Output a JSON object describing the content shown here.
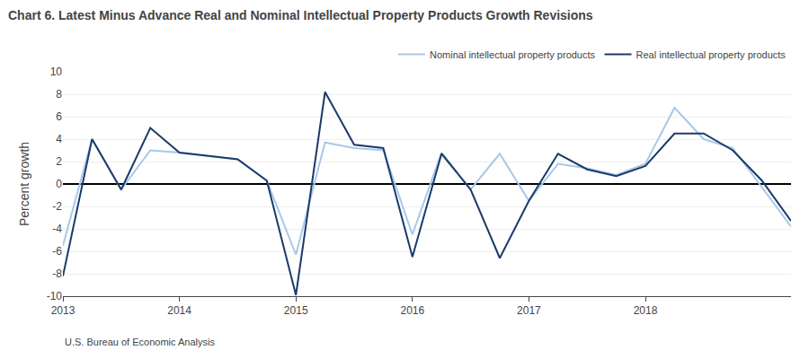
{
  "chart_data": {
    "type": "line",
    "title": "Chart 6. Latest Minus Advance Real and Nominal Intellectual Property Products Growth Revisions",
    "ylabel": "Percent growth",
    "annotations": [
      "U.S. Bureau of Economic Analysis"
    ],
    "categories": [
      "2013",
      null,
      null,
      null,
      "2014",
      null,
      null,
      null,
      "2015",
      null,
      null,
      null,
      "2016",
      null,
      null,
      null,
      "2017",
      null,
      null,
      null,
      "2018",
      null,
      null,
      null,
      null,
      null
    ],
    "series": [
      {
        "name": "Nominal intellectual property products",
        "color": "#a8c8e8",
        "values": [
          -5.5,
          4.0,
          -0.5,
          3.0,
          2.8,
          2.5,
          2.2,
          0.3,
          -6.3,
          3.7,
          3.2,
          3.0,
          -4.5,
          2.8,
          -0.5,
          2.7,
          -1.5,
          1.8,
          1.4,
          0.8,
          1.8,
          6.8,
          4.0,
          3.2,
          -0.3,
          -3.8
        ]
      },
      {
        "name": "Real intellectual property products",
        "color": "#1a3a6b",
        "values": [
          -8.2,
          4.0,
          -0.5,
          5.0,
          2.8,
          2.5,
          2.2,
          0.3,
          -9.9,
          8.2,
          3.5,
          3.2,
          -6.5,
          2.7,
          -0.5,
          -6.6,
          -1.5,
          2.7,
          1.3,
          0.7,
          1.6,
          4.5,
          4.5,
          3.0,
          0.3,
          -3.3
        ]
      }
    ],
    "ylim": [
      -10,
      10
    ],
    "yticks": [
      -10,
      -8,
      -6,
      -4,
      -2,
      0,
      2,
      4,
      6,
      8,
      10
    ],
    "grid": true,
    "legend": "upper right"
  }
}
